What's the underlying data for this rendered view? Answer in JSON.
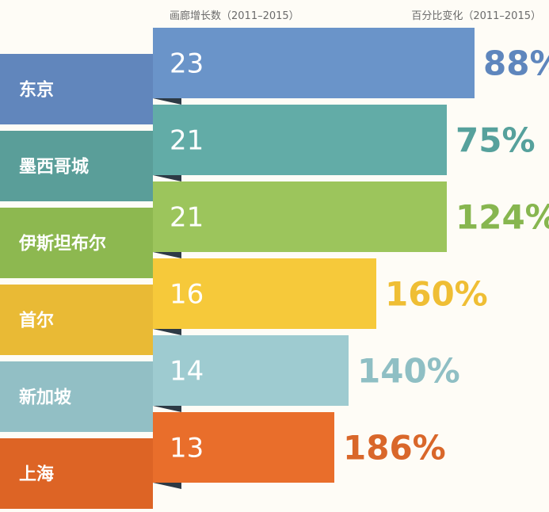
{
  "header": {
    "left": "画廊增长数（2011–2015）",
    "right": "百分比变化（2011–2015）"
  },
  "chart_data": {
    "type": "bar",
    "orientation": "horizontal",
    "categories": [
      "东京",
      "墨西哥城",
      "伊斯坦布尔",
      "首尔",
      "新加坡",
      "上海"
    ],
    "series": [
      {
        "values": [
          23,
          21,
          21,
          16,
          14,
          13
        ]
      }
    ],
    "percent_change": [
      "88%",
      "75%",
      "124%",
      "160%",
      "140%",
      "186%"
    ],
    "xlim": [
      0,
      23
    ],
    "grid": false,
    "legend": "none"
  },
  "colors": {
    "bars": [
      "#6a94c9",
      "#62aca7",
      "#9cc55c",
      "#f6c93a",
      "#9ecbd0",
      "#e96e2b"
    ],
    "labels": [
      "#6186bc",
      "#5a9e99",
      "#8db850",
      "#e9ba35",
      "#92bfc5",
      "#dd6425"
    ],
    "pct": [
      "#5e86bd",
      "#56a19c",
      "#87b64f",
      "#efbe34",
      "#8fbfc4",
      "#d9672a"
    ],
    "fold": "#2d3a45"
  }
}
